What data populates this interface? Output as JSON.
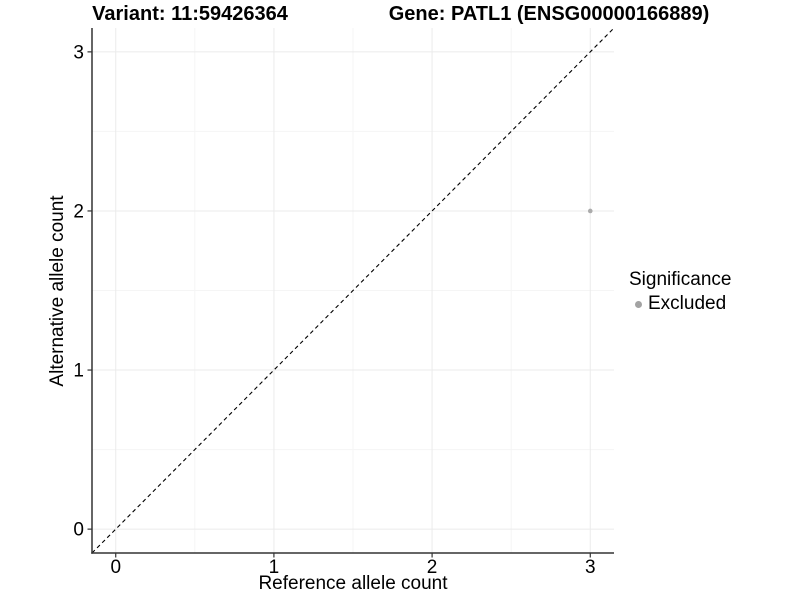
{
  "header": {
    "variant_title": "Variant: 11:59426364",
    "gene_title": "Gene: PATL1 (ENSG00000166889)"
  },
  "chart_data": {
    "type": "scatter",
    "xlabel": "Reference allele count",
    "ylabel": "Alternative allele count",
    "xlim": [
      -0.15,
      3.15
    ],
    "ylim": [
      -0.15,
      3.15
    ],
    "xticks": [
      0,
      1,
      2,
      3
    ],
    "yticks": [
      0,
      1,
      2,
      3
    ],
    "grid": {
      "major": true,
      "minor": true
    },
    "reference_line": {
      "type": "identity",
      "slope": 1,
      "intercept": 0,
      "style": "dashed",
      "color": "#000000"
    },
    "series": [
      {
        "name": "Excluded",
        "color": "#ababab",
        "points": [
          {
            "x": 3,
            "y": 2
          }
        ]
      }
    ],
    "legend": {
      "title": "Significance",
      "position": "right",
      "entries": [
        {
          "label": "Excluded",
          "color": "#a3a3a3",
          "shape": "circle"
        }
      ]
    },
    "colors": {
      "axis": "#333333",
      "tick": "#333333",
      "grid_major": "#ebebeb",
      "grid_minor": "#f5f5f5",
      "text": "#000000",
      "background": "#ffffff"
    }
  }
}
